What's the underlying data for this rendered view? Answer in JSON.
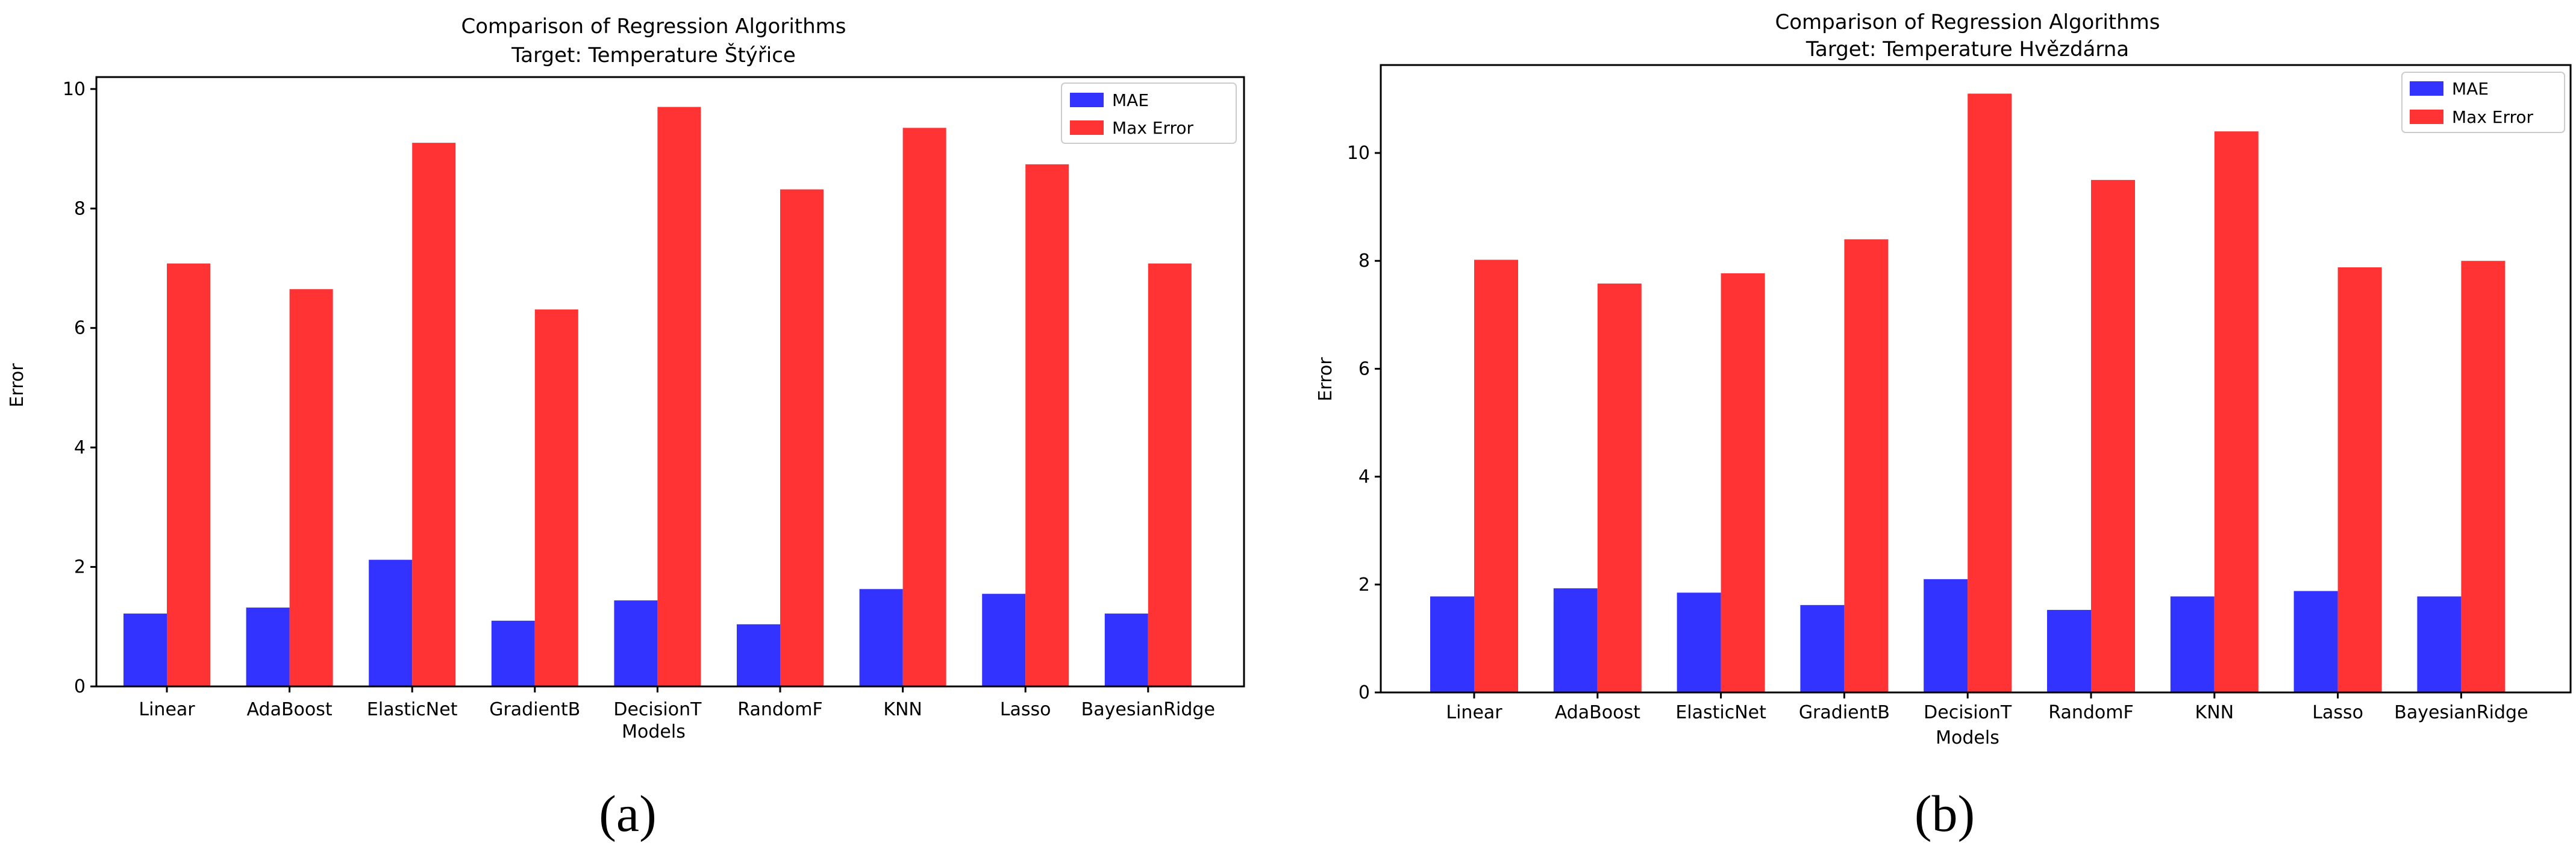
{
  "chart_data": [
    {
      "type": "bar",
      "title": "Comparison of Regression Algorithms",
      "subtitle": "Target: Temperature Štýřice",
      "xlabel": "Models",
      "ylabel": "Error",
      "ylim": [
        0,
        10.2
      ],
      "yticks": [
        0,
        2,
        4,
        6,
        8,
        10
      ],
      "categories": [
        "Linear",
        "AdaBoost",
        "ElasticNet",
        "GradientB",
        "DecisionT",
        "RandomF",
        "KNN",
        "Lasso",
        "BayesianRidge"
      ],
      "series": [
        {
          "name": "MAE",
          "color": "#3333ff",
          "values": [
            1.22,
            1.32,
            2.12,
            1.1,
            1.44,
            1.04,
            1.63,
            1.55,
            1.22
          ]
        },
        {
          "name": "Max Error",
          "color": "#ff3333",
          "values": [
            7.08,
            6.65,
            9.1,
            6.31,
            9.7,
            8.32,
            9.35,
            8.74,
            7.08
          ]
        }
      ],
      "legend": "top-right",
      "panel_label": "(a)"
    },
    {
      "type": "bar",
      "title": "Comparison of Regression Algorithms",
      "subtitle": "Target: Temperature Hvězdárna",
      "xlabel": "Models",
      "ylabel": "Error",
      "ylim": [
        0,
        11.63
      ],
      "yticks": [
        0,
        2,
        4,
        6,
        8,
        10
      ],
      "categories": [
        "Linear",
        "AdaBoost",
        "ElasticNet",
        "GradientB",
        "DecisionT",
        "RandomF",
        "KNN",
        "Lasso",
        "BayesianRidge"
      ],
      "series": [
        {
          "name": "MAE",
          "color": "#3333ff",
          "values": [
            1.78,
            1.93,
            1.85,
            1.62,
            2.1,
            1.53,
            1.78,
            1.88,
            1.78
          ]
        },
        {
          "name": "Max Error",
          "color": "#ff3333",
          "values": [
            8.02,
            7.58,
            7.77,
            8.4,
            11.1,
            9.5,
            10.4,
            7.88,
            8.0
          ]
        }
      ],
      "legend": "top-right",
      "panel_label": "(b)"
    }
  ]
}
